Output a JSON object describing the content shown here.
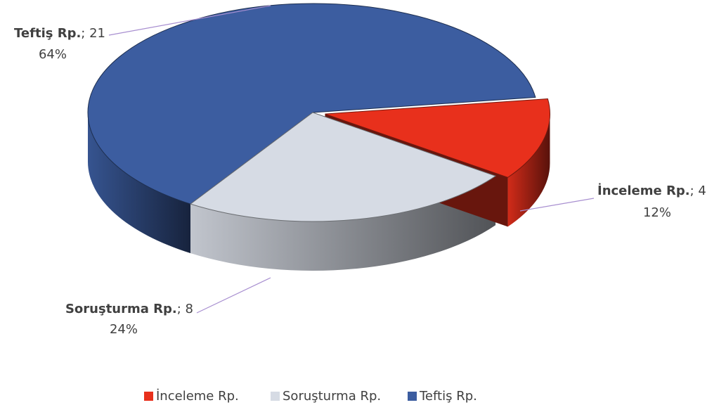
{
  "chart_data": {
    "type": "pie3d",
    "categories": [
      "İnceleme Rp.",
      "Soruşturma Rp.",
      "Teftiş Rp."
    ],
    "values": [
      4,
      8,
      21
    ],
    "percent_labels": [
      "12%",
      "24%",
      "64%"
    ],
    "label_separator": "; ",
    "colors": [
      "#e8301c",
      "#d6dbe4",
      "#3c5da0"
    ],
    "legend": "bottom"
  }
}
